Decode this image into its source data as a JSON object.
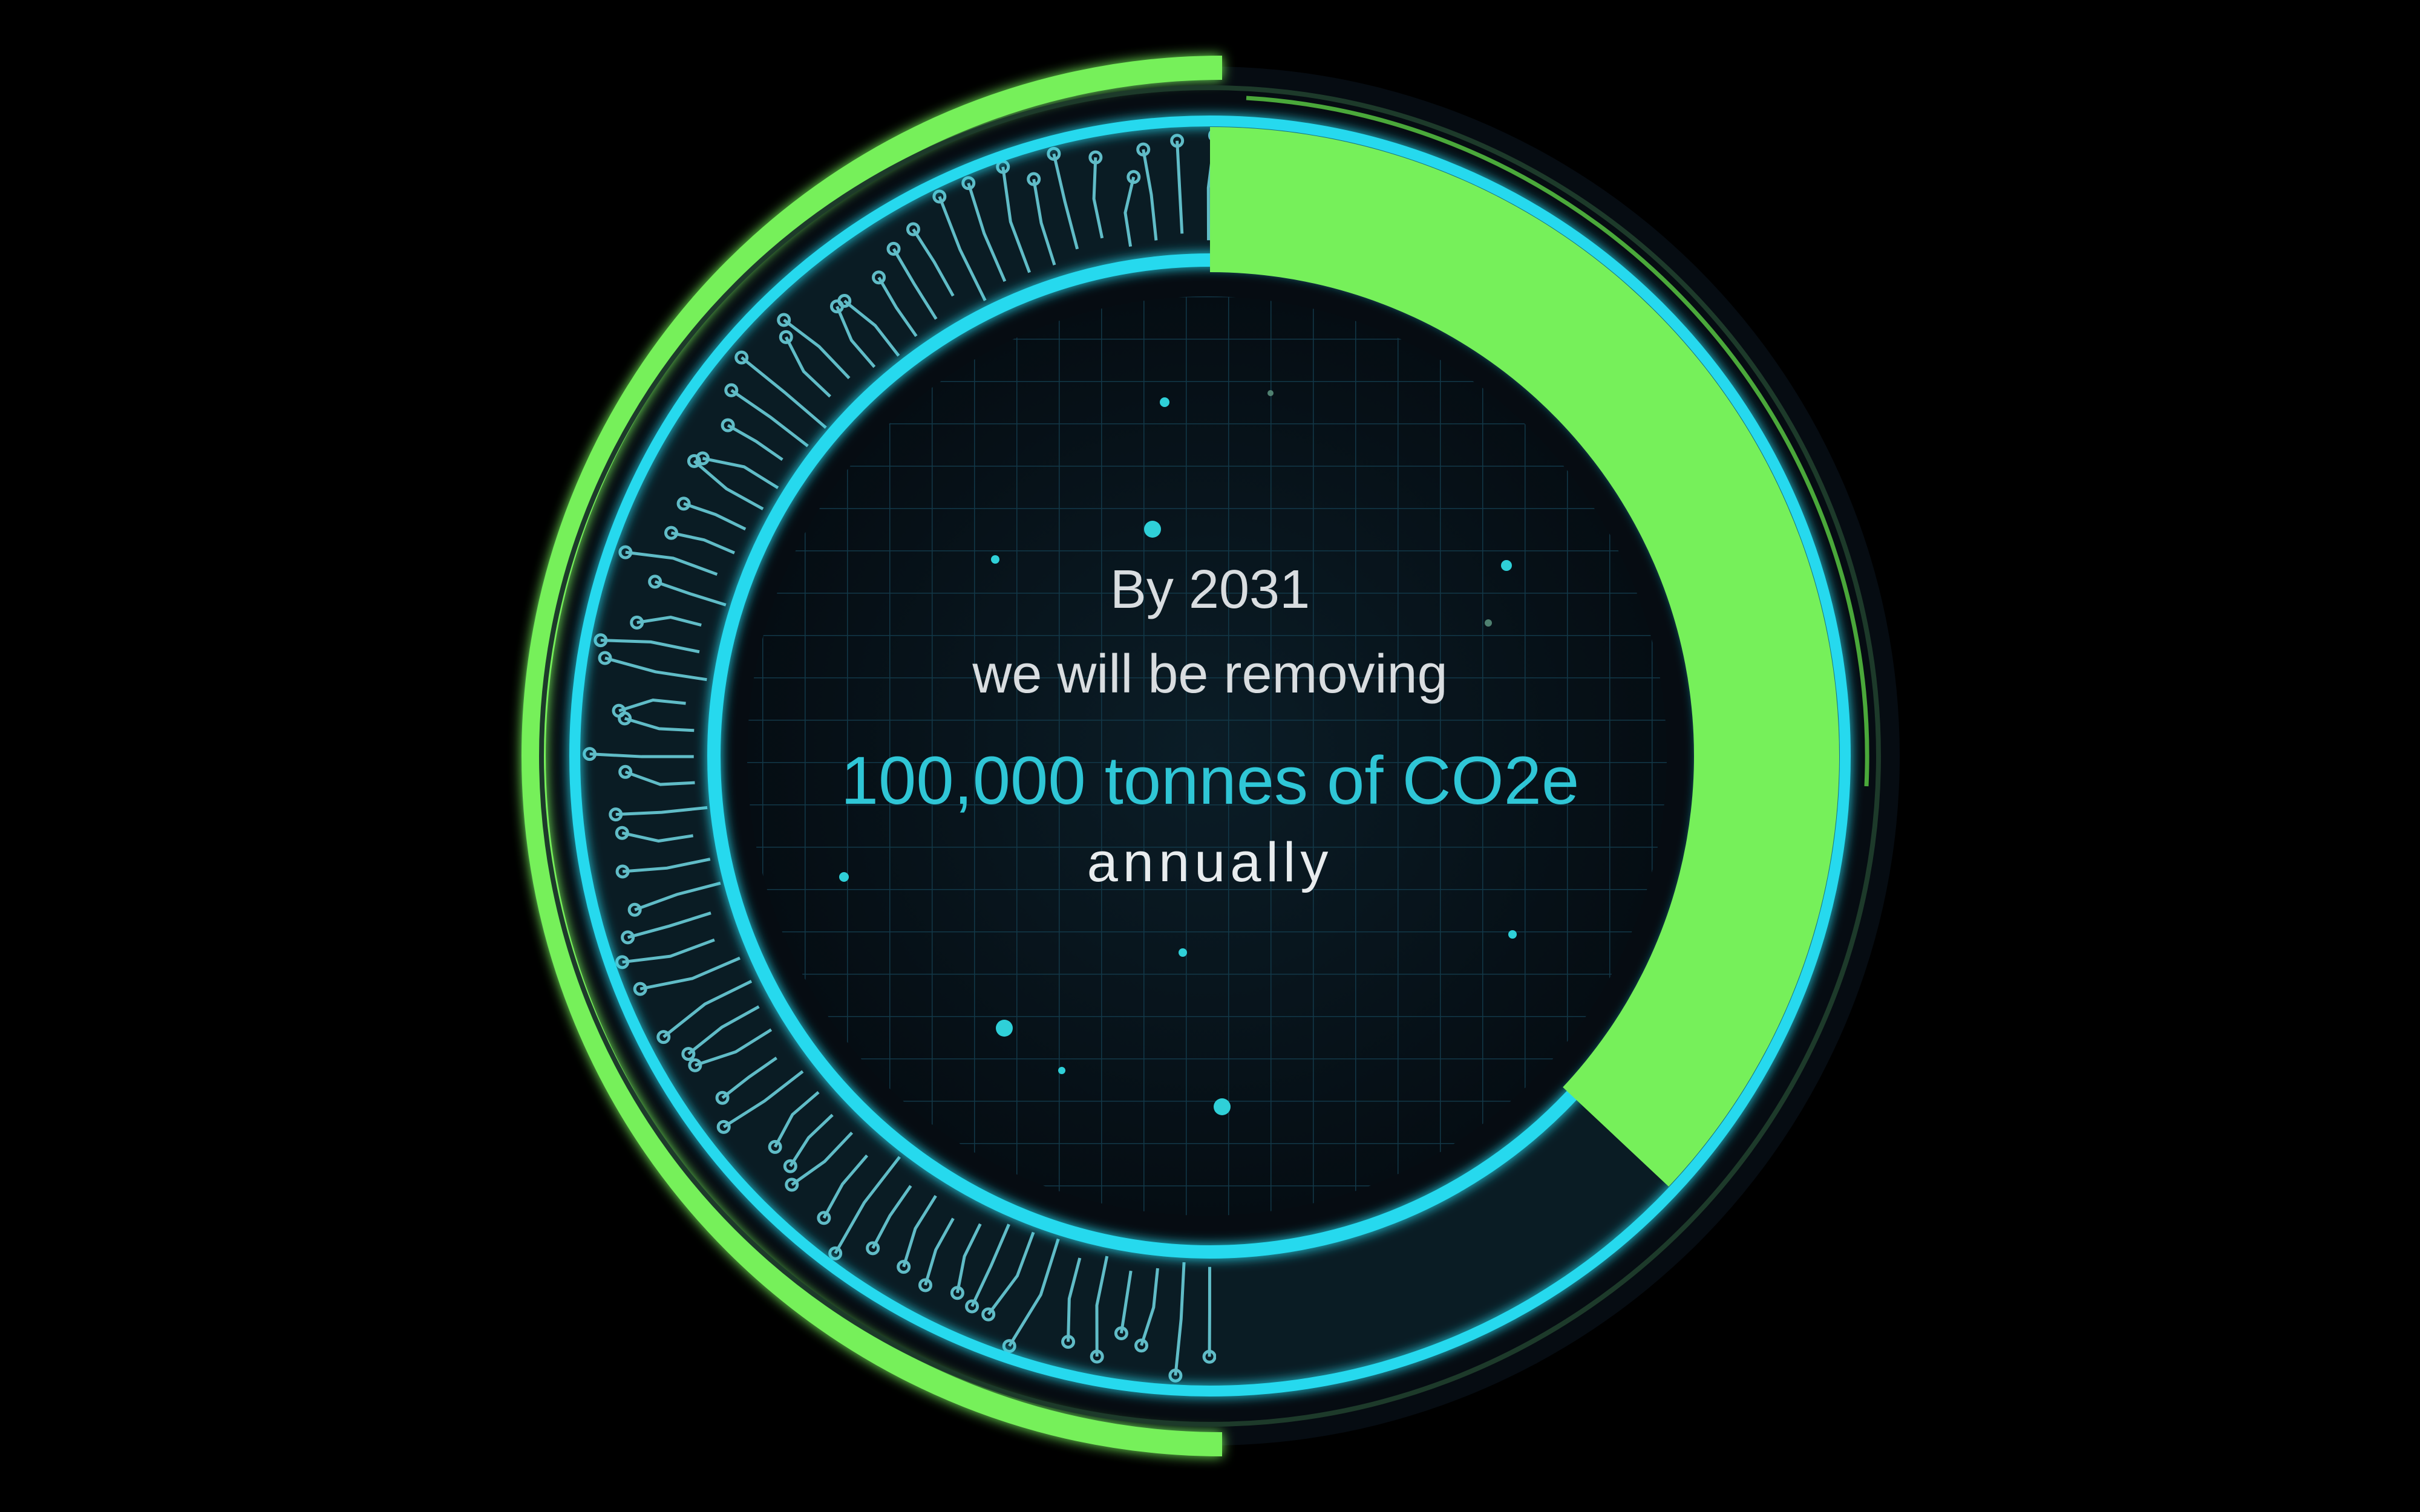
{
  "graphic": {
    "progress_fraction": 0.37,
    "colors": {
      "background": "#000000",
      "ring_green": "#76f05a",
      "ring_cyan": "#27d9ee",
      "core": "#07141c",
      "text_light": "#d9dde0",
      "text_accent": "#2fc6d6"
    },
    "icons": [
      "circuit-pattern",
      "grid-pattern",
      "particle-dots"
    ]
  },
  "caption": {
    "line_1": "By 2031",
    "line_2": "we will be removing",
    "line_3": "100,000 tonnes of CO2e",
    "line_4": "annually"
  }
}
